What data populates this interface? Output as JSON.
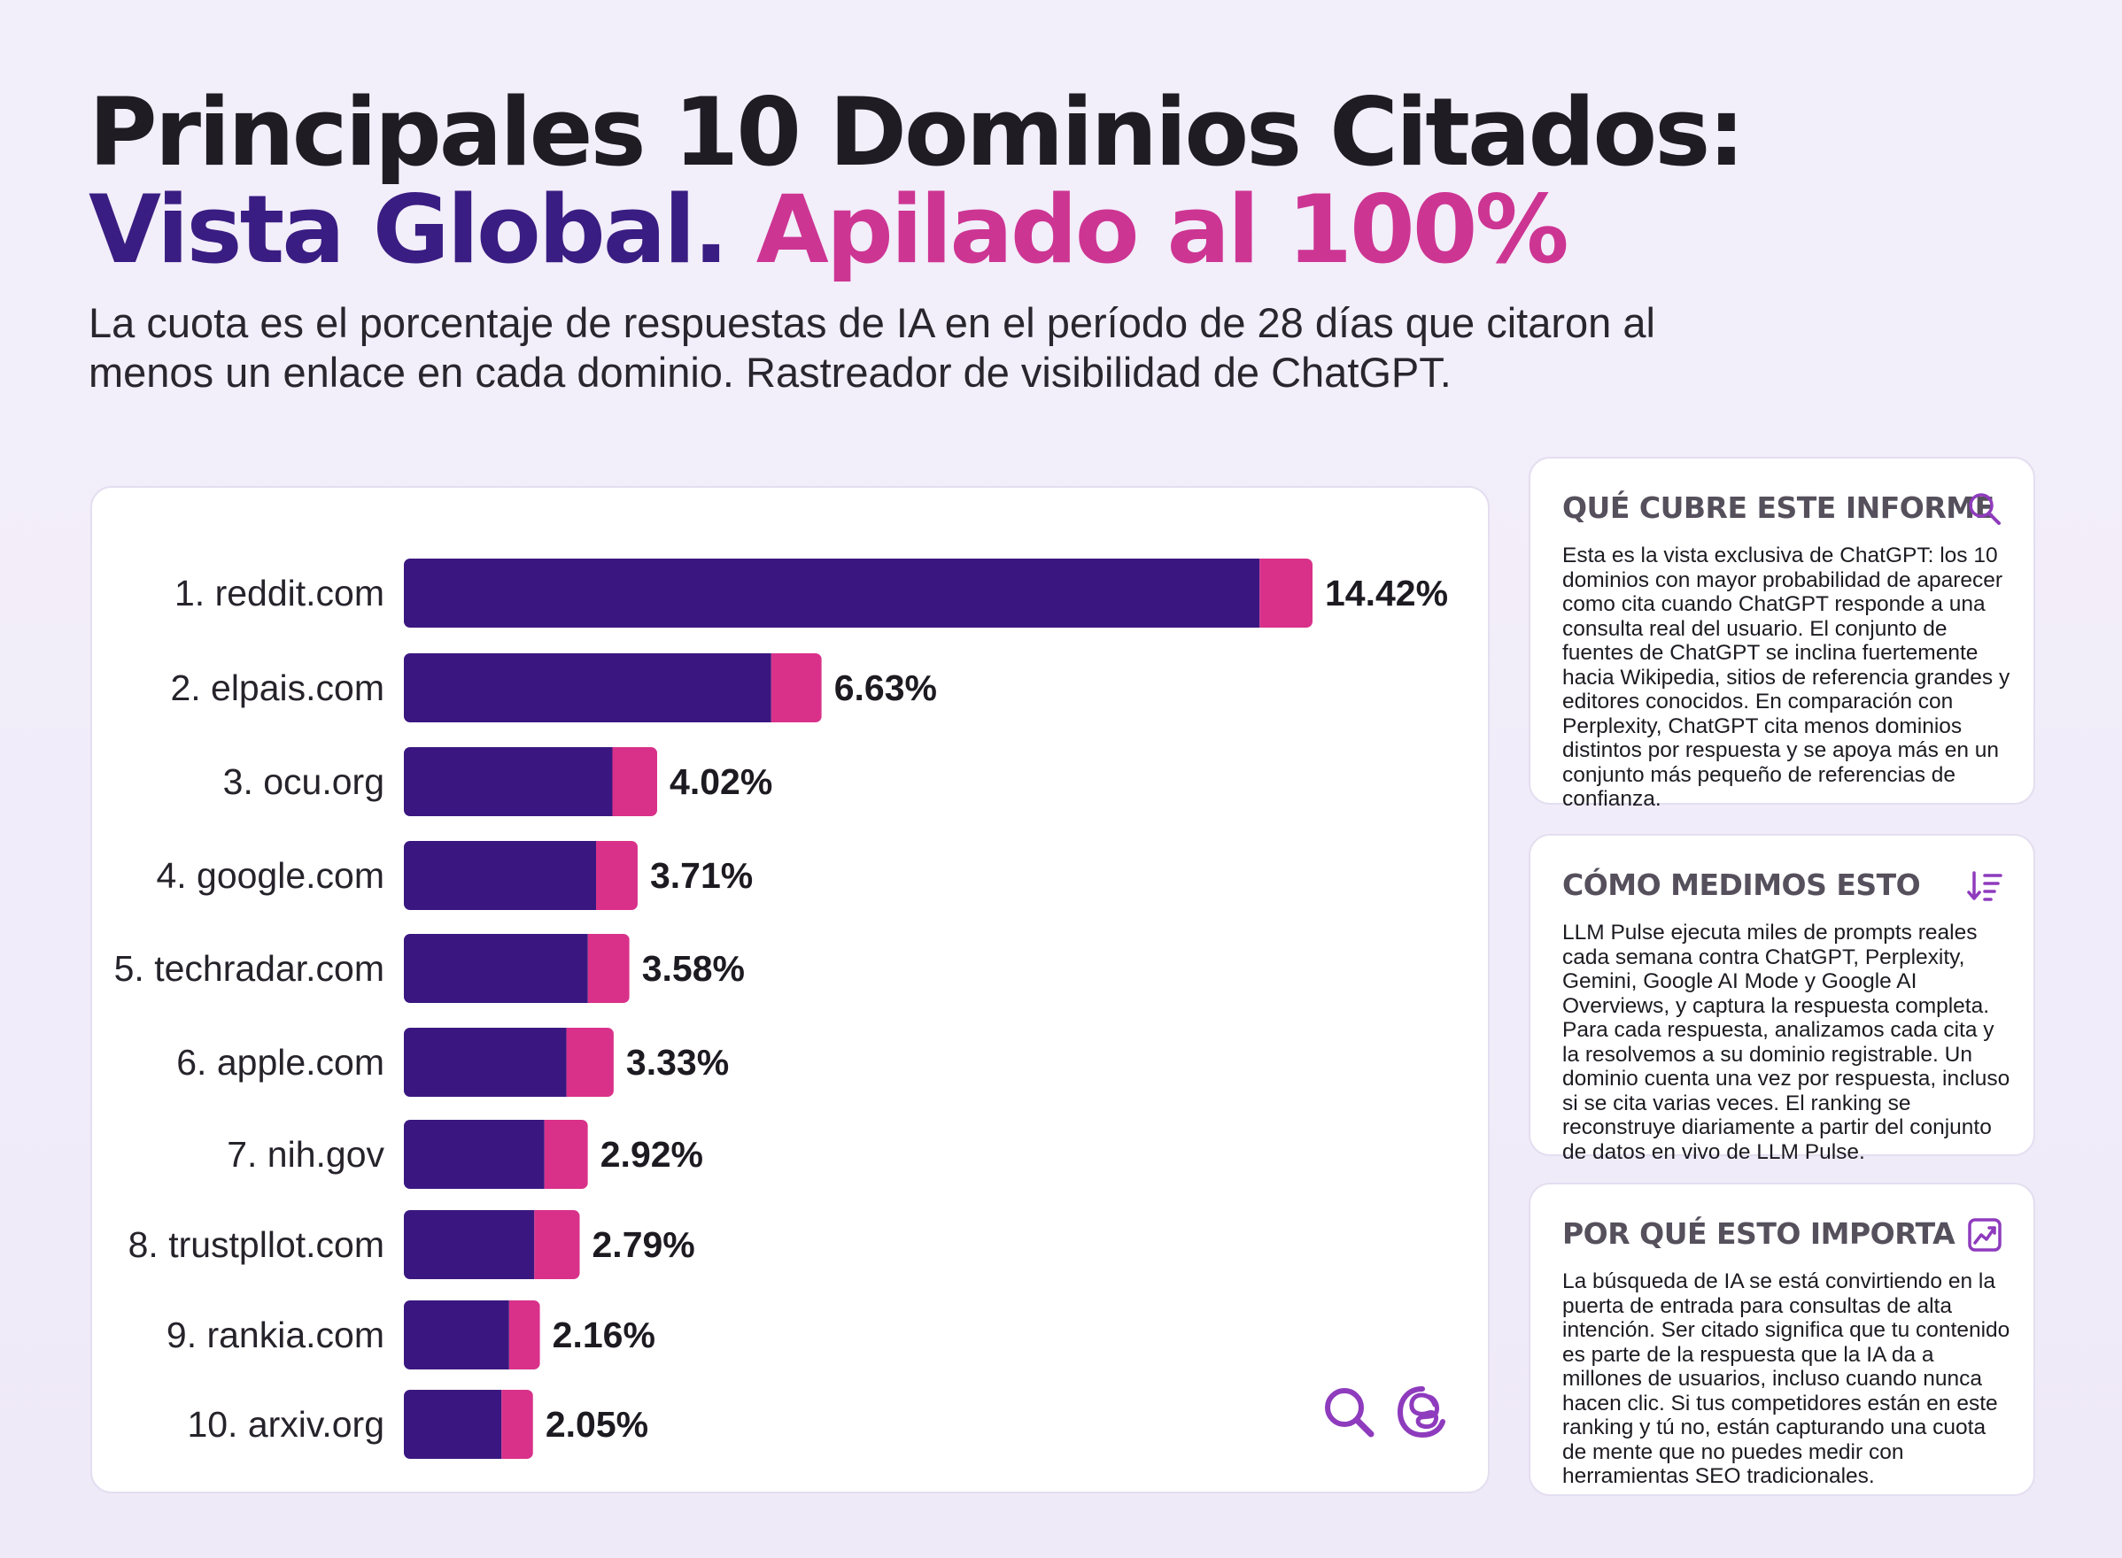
{
  "header": {
    "title_line1": "Principales 10 Dominios Citados:",
    "title_line2a": "Vista Global.",
    "title_line2b": "Apilado al 100%",
    "subtitle": "La cuota es el porcentaje de respuestas de IA en el período de 28 días que citaron al menos un enlace en cada dominio. Rastreador de visibilidad de ChatGPT."
  },
  "colors": {
    "primary": "#3a1780",
    "accent": "#d9318a",
    "title_dark": "#1f1c24",
    "title_purple": "#3a1d82",
    "title_pink": "#cd3593"
  },
  "chart_data": {
    "type": "bar",
    "orientation": "horizontal",
    "stacked": true,
    "categories": [
      "1. reddit.com",
      "2. elpais.com",
      "3. ocu.org",
      "4. google.com",
      "5. techradar.com",
      "6. apple.com",
      "7. nih.gov",
      "8. trustpllot.com",
      "9. rankia.com",
      "10. arxiv.org"
    ],
    "values": [
      14.42,
      6.63,
      4.02,
      3.71,
      3.58,
      3.33,
      2.92,
      2.79,
      2.16,
      2.05
    ],
    "value_labels": [
      "14.42%",
      "6.63%",
      "4.02%",
      "3.71%",
      "3.58%",
      "3.33%",
      "2.92%",
      "2.79%",
      "2.16%",
      "2.05%"
    ],
    "series": [
      {
        "values": [
          13.58,
          5.83,
          3.31,
          3.05,
          2.92,
          2.58,
          2.23,
          2.07,
          1.67,
          1.55
        ]
      },
      {
        "values": [
          0.84,
          0.8,
          0.71,
          0.66,
          0.66,
          0.75,
          0.69,
          0.72,
          0.49,
          0.5
        ]
      }
    ],
    "xlim": [
      0,
      14.42
    ],
    "grid": false,
    "legend": "none"
  },
  "chart_footer_icons": [
    "magnifier-icon",
    "threads-icon"
  ],
  "side_cards": [
    {
      "title": "QUÉ CUBRE ESTE INFORME",
      "icon": "search-icon",
      "body": "Esta es la vista exclusiva de ChatGPT: los 10 dominios con mayor probabilidad de aparecer como cita cuando ChatGPT responde a una consulta real del usuario. El conjunto de fuentes de ChatGPT se inclina fuertemente hacia Wikipedia, sitios de referencia grandes y editores conocidos. En comparación con Perplexity, ChatGPT cita menos dominios distintos por respuesta y se apoya más en un conjunto más pequeño de referencias de confianza."
    },
    {
      "title": "CÓMO MEDIMOS ESTO",
      "icon": "sort-icon",
      "body": "LLM Pulse ejecuta miles de prompts reales cada semana contra ChatGPT, Perplexity, Gemini, Google AI Mode y Google AI Overviews, y captura la respuesta completa. Para cada respuesta, analizamos cada cita y la resolvemos a su dominio registrable. Un dominio cuenta una vez por respuesta, incluso si se cita varias veces. El ranking se reconstruye diariamente a partir del conjunto de datos en vivo de LLM Pulse."
    },
    {
      "title": "POR QUÉ ESTO IMPORTA",
      "icon": "trend-chart-icon",
      "body": "La búsqueda de IA se está convirtiendo en la puerta de entrada para consultas de alta intención. Ser citado significa que tu contenido es parte de la respuesta que la IA da a millones de usuarios, incluso cuando nunca hacen clic. Si tus competidores están en este ranking y tú no, están capturando una cuota de mente que no puedes medir con herramientas SEO tradicionales."
    }
  ]
}
